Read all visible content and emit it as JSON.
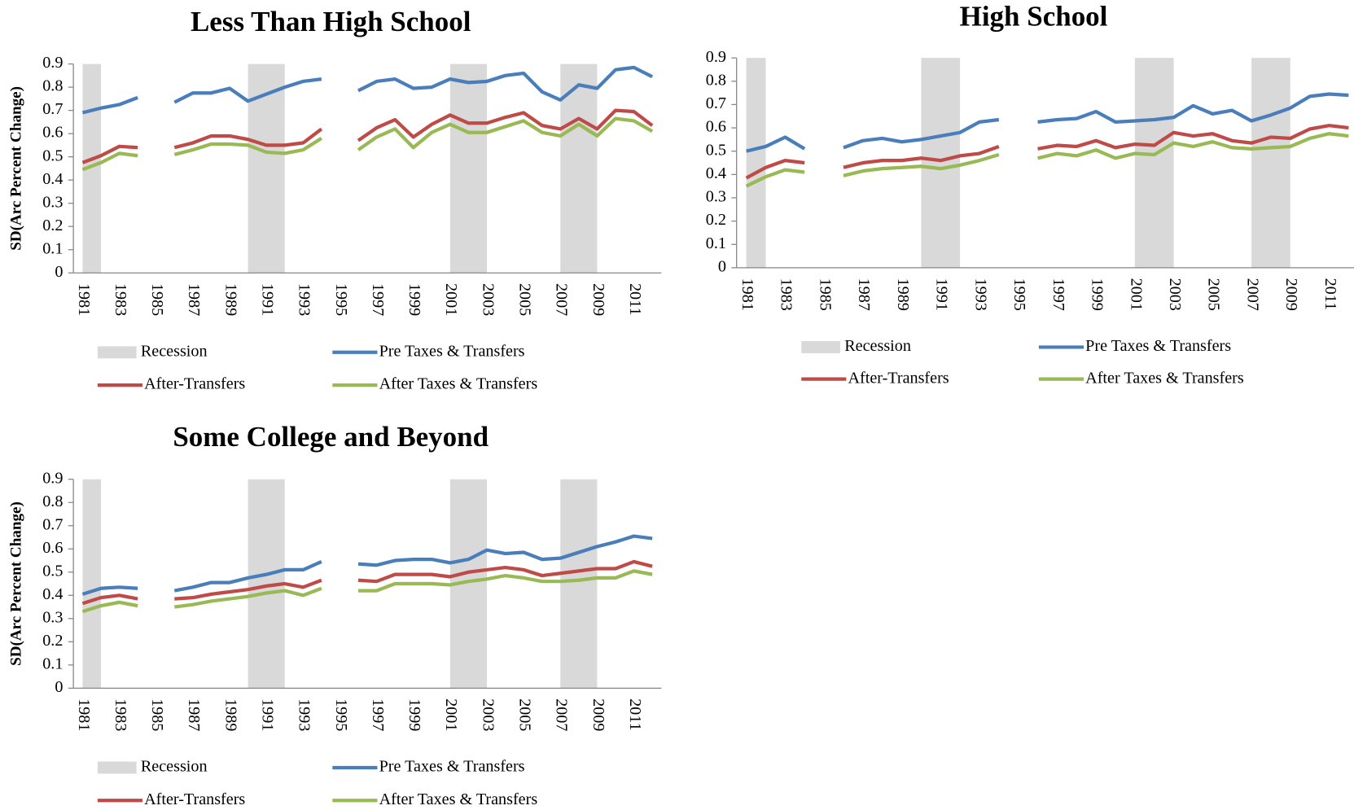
{
  "chart_data": [
    {
      "type": "line",
      "title": "Less Than High School",
      "ylabel": "SD(Arc Percent Change)",
      "categories": [
        "1981",
        null,
        "1983",
        null,
        "1985",
        null,
        "1987",
        null,
        "1989",
        null,
        "1991",
        null,
        "1993",
        null,
        "1995",
        null,
        "1997",
        null,
        "1999",
        null,
        "2001",
        null,
        "2003",
        null,
        "2005",
        null,
        "2007",
        null,
        "2009",
        null,
        "2011",
        null
      ],
      "ylim": [
        0,
        0.9
      ],
      "yticks": [
        0,
        0.1,
        0.2,
        0.3,
        0.4,
        0.5,
        0.6,
        0.7,
        0.8,
        0.9
      ],
      "series": [
        {
          "name": "Recession",
          "type": "area",
          "color": "#d9d9d9",
          "values": [
            0.9,
            0.9,
            null,
            null,
            null,
            null,
            null,
            null,
            null,
            0.9,
            0.9,
            0.9,
            null,
            null,
            null,
            null,
            null,
            null,
            null,
            null,
            0.9,
            0.9,
            0.9,
            null,
            null,
            null,
            0.9,
            0.9,
            0.9,
            null,
            null,
            null
          ]
        },
        {
          "name": "Pre Taxes & Transfers",
          "type": "line",
          "color": "#4a7ebb",
          "values": [
            0.69,
            0.71,
            0.725,
            0.755,
            null,
            0.735,
            0.775,
            0.775,
            0.795,
            0.74,
            0.77,
            0.8,
            0.825,
            0.835,
            null,
            0.785,
            0.825,
            0.835,
            0.795,
            0.8,
            0.835,
            0.82,
            0.825,
            0.85,
            0.86,
            0.78,
            0.745,
            0.81,
            0.795,
            0.875,
            0.885,
            0.845
          ]
        },
        {
          "name": "After-Transfers",
          "type": "line",
          "color": "#be4b48",
          "values": [
            0.475,
            0.505,
            0.545,
            0.54,
            null,
            0.54,
            0.56,
            0.59,
            0.59,
            0.575,
            0.55,
            0.55,
            0.56,
            0.62,
            null,
            0.57,
            0.625,
            0.66,
            0.585,
            0.64,
            0.68,
            0.645,
            0.645,
            0.67,
            0.69,
            0.635,
            0.62,
            0.665,
            0.62,
            0.7,
            0.695,
            0.635
          ]
        },
        {
          "name": "After Taxes & Transfers",
          "type": "line",
          "color": "#98b954",
          "values": [
            0.445,
            0.475,
            0.515,
            0.505,
            null,
            0.51,
            0.53,
            0.555,
            0.555,
            0.55,
            0.52,
            0.515,
            0.53,
            0.58,
            null,
            0.53,
            0.585,
            0.62,
            0.54,
            0.605,
            0.64,
            0.605,
            0.605,
            0.63,
            0.655,
            0.605,
            0.59,
            0.64,
            0.59,
            0.665,
            0.655,
            0.61
          ]
        }
      ]
    },
    {
      "type": "line",
      "title": "High School",
      "categories": [
        "1981",
        null,
        "1983",
        null,
        "1985",
        null,
        "1987",
        null,
        "1989",
        null,
        "1991",
        null,
        "1993",
        null,
        "1995",
        null,
        "1997",
        null,
        "1999",
        null,
        "2001",
        null,
        "2003",
        null,
        "2005",
        null,
        "2007",
        null,
        "2009",
        null,
        "2011",
        null
      ],
      "ylim": [
        0,
        0.9
      ],
      "yticks": [
        0,
        0.1,
        0.2,
        0.3,
        0.4,
        0.5,
        0.6,
        0.7,
        0.8,
        0.9
      ],
      "series": [
        {
          "name": "Recession",
          "type": "area",
          "color": "#d9d9d9",
          "values": [
            0.9,
            0.9,
            null,
            null,
            null,
            null,
            null,
            null,
            null,
            0.9,
            0.9,
            0.9,
            null,
            null,
            null,
            null,
            null,
            null,
            null,
            null,
            0.9,
            0.9,
            0.9,
            null,
            null,
            null,
            0.9,
            0.9,
            0.9,
            null,
            null,
            null
          ]
        },
        {
          "name": "Pre Taxes & Transfers",
          "type": "line",
          "color": "#4a7ebb",
          "values": [
            0.5,
            0.52,
            0.56,
            0.51,
            null,
            0.515,
            0.545,
            0.555,
            0.54,
            0.55,
            0.565,
            0.58,
            0.625,
            0.635,
            null,
            0.625,
            0.635,
            0.64,
            0.67,
            0.625,
            0.63,
            0.635,
            0.645,
            0.695,
            0.66,
            0.675,
            0.63,
            0.655,
            0.685,
            0.735,
            0.745,
            0.74
          ]
        },
        {
          "name": "After-Transfers",
          "type": "line",
          "color": "#be4b48",
          "values": [
            0.385,
            0.43,
            0.46,
            0.45,
            null,
            0.43,
            0.45,
            0.46,
            0.46,
            0.47,
            0.46,
            0.48,
            0.49,
            0.52,
            null,
            0.51,
            0.525,
            0.52,
            0.545,
            0.515,
            0.53,
            0.525,
            0.58,
            0.565,
            0.575,
            0.545,
            0.535,
            0.56,
            0.555,
            0.595,
            0.61,
            0.6
          ]
        },
        {
          "name": "After Taxes & Transfers",
          "type": "line",
          "color": "#98b954",
          "values": [
            0.35,
            0.39,
            0.42,
            0.41,
            null,
            0.395,
            0.415,
            0.425,
            0.43,
            0.435,
            0.425,
            0.44,
            0.46,
            0.485,
            null,
            0.47,
            0.49,
            0.48,
            0.505,
            0.47,
            0.49,
            0.485,
            0.535,
            0.52,
            0.54,
            0.515,
            0.51,
            0.515,
            0.52,
            0.555,
            0.575,
            0.565
          ]
        }
      ]
    },
    {
      "type": "line",
      "title": "Some College and Beyond",
      "ylabel": "SD(Arc Percent Change)",
      "categories": [
        "1981",
        null,
        "1983",
        null,
        "1985",
        null,
        "1987",
        null,
        "1989",
        null,
        "1991",
        null,
        "1993",
        null,
        "1995",
        null,
        "1997",
        null,
        "1999",
        null,
        "2001",
        null,
        "2003",
        null,
        "2005",
        null,
        "2007",
        null,
        "2009",
        null,
        "2011",
        null
      ],
      "ylim": [
        0,
        0.9
      ],
      "yticks": [
        0,
        0.1,
        0.2,
        0.3,
        0.4,
        0.5,
        0.6,
        0.7,
        0.8,
        0.9
      ],
      "series": [
        {
          "name": "Recession",
          "type": "area",
          "color": "#d9d9d9",
          "values": [
            0.9,
            0.9,
            null,
            null,
            null,
            null,
            null,
            null,
            null,
            0.9,
            0.9,
            0.9,
            null,
            null,
            null,
            null,
            null,
            null,
            null,
            null,
            0.9,
            0.9,
            0.9,
            null,
            null,
            null,
            0.9,
            0.9,
            0.9,
            null,
            null,
            null
          ]
        },
        {
          "name": "Pre Taxes & Transfers",
          "type": "line",
          "color": "#4a7ebb",
          "values": [
            0.405,
            0.43,
            0.435,
            0.43,
            null,
            0.42,
            0.435,
            0.455,
            0.455,
            0.475,
            0.49,
            0.51,
            0.51,
            0.545,
            null,
            0.535,
            0.53,
            0.55,
            0.555,
            0.555,
            0.54,
            0.555,
            0.595,
            0.58,
            0.585,
            0.555,
            0.56,
            0.585,
            0.61,
            0.63,
            0.655,
            0.645
          ]
        },
        {
          "name": "After-Transfers",
          "type": "line",
          "color": "#be4b48",
          "values": [
            0.365,
            0.39,
            0.4,
            0.385,
            null,
            0.385,
            0.39,
            0.405,
            0.415,
            0.425,
            0.44,
            0.45,
            0.435,
            0.465,
            null,
            0.465,
            0.46,
            0.49,
            0.49,
            0.49,
            0.48,
            0.5,
            0.51,
            0.52,
            0.51,
            0.485,
            0.495,
            0.505,
            0.515,
            0.515,
            0.545,
            0.525
          ]
        },
        {
          "name": "After Taxes & Transfers",
          "type": "line",
          "color": "#98b954",
          "values": [
            0.33,
            0.355,
            0.37,
            0.355,
            null,
            0.35,
            0.36,
            0.375,
            0.385,
            0.395,
            0.41,
            0.42,
            0.4,
            0.43,
            null,
            0.42,
            0.42,
            0.45,
            0.45,
            0.45,
            0.445,
            0.46,
            0.47,
            0.485,
            0.475,
            0.46,
            0.46,
            0.465,
            0.475,
            0.475,
            0.505,
            0.49
          ]
        }
      ]
    }
  ]
}
